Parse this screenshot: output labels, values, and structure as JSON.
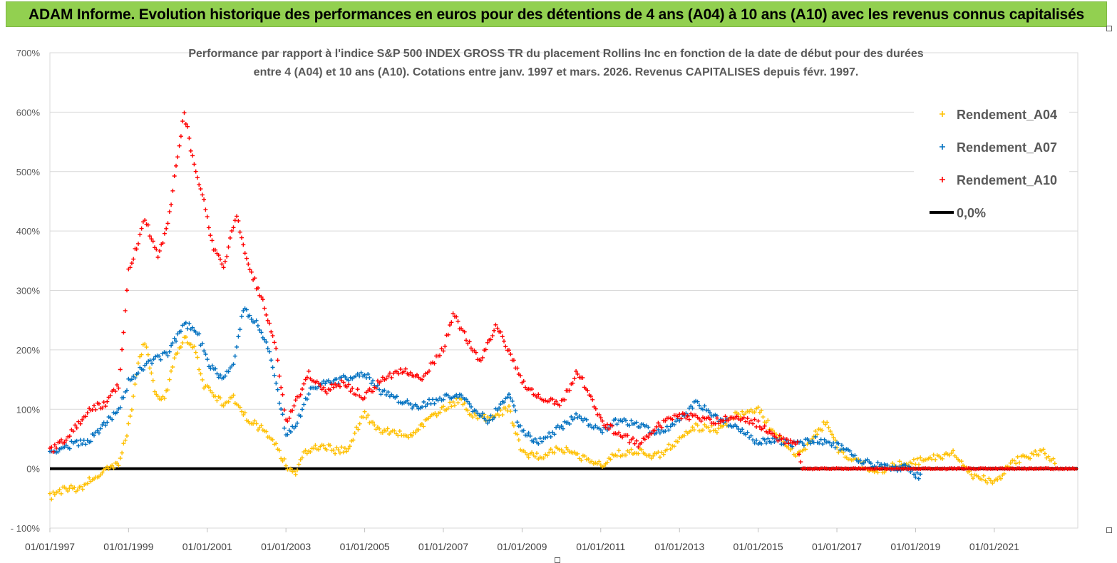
{
  "banner": {
    "text": "ADAM Informe. Evolution historique des performances en euros pour des détentions de 4 ans (A04) à 10 ans (A10) avec les revenus connus capitalisés"
  },
  "chart_data": {
    "type": "scatter",
    "title_lines": [
      "Performance par rapport à l'indice S&P 500 INDEX GROSS TR  du placement Rollins Inc en fonction de la date de début pour des durées",
      "entre 4 (A04) et 10 ans (A10). Cotations entre janv. 1997 et mars. 2026. Revenus CAPITALISES depuis févr. 1997."
    ],
    "xlabel": "",
    "ylabel": "",
    "xlim": [
      "1997-01-01",
      "2023-02-15"
    ],
    "ylim": [
      -100,
      700
    ],
    "y_ticks": [
      -100,
      0,
      100,
      200,
      300,
      400,
      500,
      600,
      700
    ],
    "y_tick_labels": [
      "- 100%",
      "0%",
      "100%",
      "200%",
      "300%",
      "400%",
      "500%",
      "600%",
      "700%"
    ],
    "x_ticks": [
      "1997-01-01",
      "1999-01-01",
      "2001-01-01",
      "2003-01-01",
      "2005-01-01",
      "2007-01-01",
      "2009-01-01",
      "2011-01-01",
      "2013-01-01",
      "2015-01-01",
      "2017-01-01",
      "2019-01-01",
      "2021-01-01"
    ],
    "x_tick_labels": [
      "01/01/1997",
      "01/01/1999",
      "01/01/2001",
      "01/01/2003",
      "01/01/2005",
      "01/01/2007",
      "01/01/2009",
      "01/01/2011",
      "01/01/2013",
      "01/01/2015",
      "01/01/2017",
      "01/01/2019",
      "01/01/2021"
    ],
    "grid": "horizontal",
    "legend_position": "top-right",
    "zero_line": {
      "label": "0,0%",
      "color": "#000000"
    },
    "series": [
      {
        "name": "Rendement_A04",
        "color": "#ffc000",
        "points": [
          [
            "1997-01-01",
            -48
          ],
          [
            "1997-04-01",
            -38
          ],
          [
            "1997-07-01",
            -32
          ],
          [
            "1997-10-01",
            -35
          ],
          [
            "1998-01-01",
            -20
          ],
          [
            "1998-04-01",
            -12
          ],
          [
            "1998-07-01",
            2
          ],
          [
            "1998-10-01",
            10
          ],
          [
            "1999-01-01",
            70
          ],
          [
            "1999-04-01",
            175
          ],
          [
            "1999-06-01",
            215
          ],
          [
            "1999-09-01",
            130
          ],
          [
            "1999-12-01",
            115
          ],
          [
            "2000-03-01",
            185
          ],
          [
            "2000-06-01",
            220
          ],
          [
            "2000-09-01",
            205
          ],
          [
            "2000-12-01",
            140
          ],
          [
            "2001-03-01",
            125
          ],
          [
            "2001-06-01",
            110
          ],
          [
            "2001-09-01",
            120
          ],
          [
            "2002-01-01",
            85
          ],
          [
            "2002-06-01",
            65
          ],
          [
            "2002-10-01",
            40
          ],
          [
            "2003-01-01",
            5
          ],
          [
            "2003-04-01",
            -10
          ],
          [
            "2003-07-01",
            30
          ],
          [
            "2003-12-01",
            40
          ],
          [
            "2004-04-01",
            30
          ],
          [
            "2004-08-01",
            35
          ],
          [
            "2005-01-01",
            95
          ],
          [
            "2005-04-01",
            70
          ],
          [
            "2005-09-01",
            60
          ],
          [
            "2006-03-01",
            55
          ],
          [
            "2006-08-01",
            80
          ],
          [
            "2007-01-01",
            100
          ],
          [
            "2007-06-01",
            115
          ],
          [
            "2007-10-01",
            90
          ],
          [
            "2008-03-01",
            85
          ],
          [
            "2008-09-01",
            100
          ],
          [
            "2009-01-01",
            25
          ],
          [
            "2009-06-01",
            20
          ],
          [
            "2010-01-01",
            35
          ],
          [
            "2010-06-01",
            20
          ],
          [
            "2011-01-01",
            5
          ],
          [
            "2011-06-01",
            25
          ],
          [
            "2012-01-01",
            30
          ],
          [
            "2012-06-01",
            20
          ],
          [
            "2013-01-01",
            50
          ],
          [
            "2013-06-01",
            70
          ],
          [
            "2014-01-01",
            65
          ],
          [
            "2014-06-01",
            90
          ],
          [
            "2015-01-01",
            100
          ],
          [
            "2015-06-01",
            60
          ],
          [
            "2016-01-01",
            20
          ],
          [
            "2016-06-01",
            55
          ],
          [
            "2016-10-01",
            80
          ],
          [
            "2017-01-01",
            35
          ],
          [
            "2017-06-01",
            15
          ],
          [
            "2018-01-01",
            -5
          ],
          [
            "2018-06-01",
            5
          ],
          [
            "2019-01-01",
            10
          ],
          [
            "2019-06-01",
            20
          ],
          [
            "2020-01-01",
            25
          ],
          [
            "2020-06-01",
            -10
          ],
          [
            "2021-01-01",
            -25
          ],
          [
            "2021-06-01",
            10
          ],
          [
            "2022-01-01",
            25
          ],
          [
            "2022-04-01",
            30
          ],
          [
            "2022-08-01",
            5
          ]
        ]
      },
      {
        "name": "Rendement_A07",
        "color": "#0070c0",
        "points": [
          [
            "1997-01-01",
            30
          ],
          [
            "1997-06-01",
            38
          ],
          [
            "1998-01-01",
            48
          ],
          [
            "1998-06-01",
            75
          ],
          [
            "1998-10-01",
            100
          ],
          [
            "1999-01-01",
            145
          ],
          [
            "1999-06-01",
            175
          ],
          [
            "2000-01-01",
            195
          ],
          [
            "2000-06-01",
            245
          ],
          [
            "2000-10-01",
            230
          ],
          [
            "2001-01-01",
            180
          ],
          [
            "2001-06-01",
            150
          ],
          [
            "2001-09-01",
            180
          ],
          [
            "2001-12-01",
            270
          ],
          [
            "2002-04-01",
            245
          ],
          [
            "2002-08-01",
            200
          ],
          [
            "2003-01-01",
            60
          ],
          [
            "2003-04-01",
            70
          ],
          [
            "2003-08-01",
            130
          ],
          [
            "2004-01-01",
            145
          ],
          [
            "2004-06-01",
            150
          ],
          [
            "2005-01-01",
            160
          ],
          [
            "2005-06-01",
            130
          ],
          [
            "2006-01-01",
            110
          ],
          [
            "2006-06-01",
            105
          ],
          [
            "2007-01-01",
            120
          ],
          [
            "2007-06-01",
            125
          ],
          [
            "2007-11-01",
            95
          ],
          [
            "2008-03-01",
            80
          ],
          [
            "2008-09-01",
            125
          ],
          [
            "2009-01-01",
            60
          ],
          [
            "2009-06-01",
            45
          ],
          [
            "2010-01-01",
            70
          ],
          [
            "2010-06-01",
            90
          ],
          [
            "2011-01-01",
            65
          ],
          [
            "2011-06-01",
            80
          ],
          [
            "2012-01-01",
            75
          ],
          [
            "2012-06-01",
            60
          ],
          [
            "2013-01-01",
            80
          ],
          [
            "2013-06-01",
            110
          ],
          [
            "2014-01-01",
            85
          ],
          [
            "2014-06-01",
            70
          ],
          [
            "2015-01-01",
            45
          ],
          [
            "2015-06-01",
            50
          ],
          [
            "2016-01-01",
            40
          ],
          [
            "2016-06-01",
            50
          ],
          [
            "2017-01-01",
            40
          ],
          [
            "2017-06-01",
            20
          ],
          [
            "2018-01-01",
            5
          ],
          [
            "2018-06-01",
            0
          ],
          [
            "2018-10-01",
            5
          ],
          [
            "2019-01-01",
            -10
          ],
          [
            "2019-03-01",
            -15
          ]
        ]
      },
      {
        "name": "Rendement_A10",
        "color": "#ff0000",
        "points": [
          [
            "1997-01-01",
            30
          ],
          [
            "1997-06-01",
            50
          ],
          [
            "1998-01-01",
            100
          ],
          [
            "1998-06-01",
            110
          ],
          [
            "1998-10-01",
            140
          ],
          [
            "1999-01-01",
            330
          ],
          [
            "1999-06-01",
            420
          ],
          [
            "1999-10-01",
            360
          ],
          [
            "2000-01-01",
            410
          ],
          [
            "2000-04-01",
            530
          ],
          [
            "2000-06-01",
            600
          ],
          [
            "2000-09-01",
            510
          ],
          [
            "2000-12-01",
            450
          ],
          [
            "2001-03-01",
            370
          ],
          [
            "2001-06-01",
            340
          ],
          [
            "2001-10-01",
            430
          ],
          [
            "2002-01-01",
            350
          ],
          [
            "2002-06-01",
            280
          ],
          [
            "2002-10-01",
            200
          ],
          [
            "2003-01-01",
            80
          ],
          [
            "2003-04-01",
            110
          ],
          [
            "2003-08-01",
            160
          ],
          [
            "2004-01-01",
            130
          ],
          [
            "2004-06-01",
            145
          ],
          [
            "2005-01-01",
            120
          ],
          [
            "2005-06-01",
            150
          ],
          [
            "2006-01-01",
            165
          ],
          [
            "2006-06-01",
            150
          ],
          [
            "2007-01-01",
            200
          ],
          [
            "2007-04-01",
            260
          ],
          [
            "2007-08-01",
            220
          ],
          [
            "2007-12-01",
            180
          ],
          [
            "2008-05-01",
            240
          ],
          [
            "2008-09-01",
            200
          ],
          [
            "2009-01-01",
            145
          ],
          [
            "2009-06-01",
            120
          ],
          [
            "2010-01-01",
            110
          ],
          [
            "2010-06-01",
            165
          ],
          [
            "2010-09-01",
            130
          ],
          [
            "2011-01-01",
            80
          ],
          [
            "2011-06-01",
            60
          ],
          [
            "2012-01-01",
            40
          ],
          [
            "2012-06-01",
            70
          ],
          [
            "2013-01-01",
            90
          ],
          [
            "2013-06-01",
            85
          ],
          [
            "2014-01-01",
            80
          ],
          [
            "2014-06-01",
            90
          ],
          [
            "2015-01-01",
            75
          ],
          [
            "2015-06-01",
            55
          ],
          [
            "2016-01-01",
            40
          ],
          [
            "2016-02-15",
            0
          ],
          [
            "2023-02-15",
            0
          ]
        ]
      }
    ]
  }
}
